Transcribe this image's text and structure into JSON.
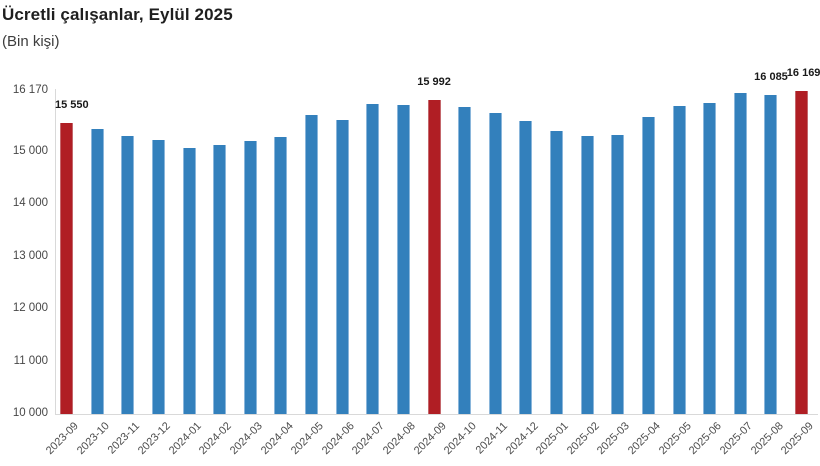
{
  "header": {
    "title": "Ücretli çalışanlar, Eylül 2025",
    "subtitle": "(Bin kişi)"
  },
  "chart_data": {
    "type": "bar",
    "title": "Ücretli çalışanlar, Eylül 2025",
    "subtitle": "(Bin kişi)",
    "unit": "Bin kişi",
    "categories": [
      "2023-09",
      "2023-10",
      "2023-11",
      "2023-12",
      "2024-01",
      "2024-02",
      "2024-03",
      "2024-04",
      "2024-05",
      "2024-06",
      "2024-07",
      "2024-08",
      "2024-09",
      "2024-10",
      "2024-11",
      "2024-12",
      "2025-01",
      "2025-02",
      "2025-03",
      "2025-04",
      "2025-05",
      "2025-06",
      "2025-07",
      "2025-08",
      "2025-09"
    ],
    "values": [
      15550,
      15440,
      15310,
      15235,
      15070,
      15135,
      15215,
      15295,
      15710,
      15610,
      15915,
      15905,
      15992,
      15865,
      15745,
      15600,
      15410,
      15310,
      15330,
      15665,
      15885,
      15935,
      16120,
      16085,
      16169
    ],
    "bar_labels": {
      "0": "15 550",
      "12": "15 992",
      "23": "16 085",
      "24": "16 169"
    },
    "highlight_indices": [
      0,
      12,
      24
    ],
    "xlabel": "",
    "ylabel": "",
    "ylim": [
      10000,
      16170
    ],
    "grid": false,
    "legend": false,
    "y_axis_ticks": [
      {
        "value": 10000,
        "label": "10 000"
      },
      {
        "value": 11000,
        "label": "11 000"
      },
      {
        "value": 12000,
        "label": "12 000"
      },
      {
        "value": 13000,
        "label": "13 000"
      },
      {
        "value": 14000,
        "label": "14 000"
      },
      {
        "value": 15000,
        "label": "15 000"
      },
      {
        "value": 16170,
        "label": "16 170"
      }
    ],
    "colors": {
      "bar": "#3380BC",
      "bar_border": "#8AB6DB",
      "highlight": "#B01E24",
      "highlight_border": "#C4666B",
      "axis_line": "#D9D9D9",
      "y_tick_text": "#474747",
      "x_tick_text": "#4D4D4D",
      "value_label_text": "#1A1A1A"
    }
  }
}
